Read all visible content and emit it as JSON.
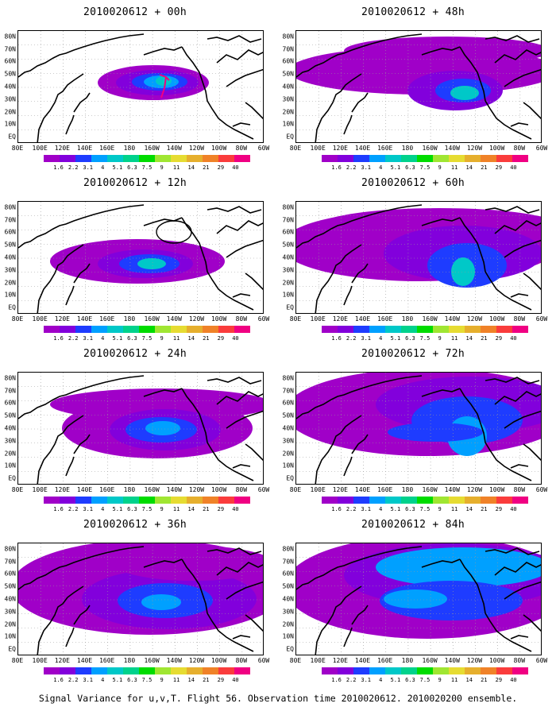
{
  "footer": "Signal Variance for u,v,T. Flight 56. Observation time 2010020612. 2010020200 ensemble.",
  "lat_labels": [
    "80N",
    "70N",
    "60N",
    "50N",
    "40N",
    "30N",
    "20N",
    "10N",
    "EQ"
  ],
  "lon_labels": [
    "80E",
    "100E",
    "120E",
    "140E",
    "160E",
    "180",
    "160W",
    "140W",
    "120W",
    "100W",
    "80W",
    "60W"
  ],
  "colorbar": {
    "labels": [
      "1.6",
      "2.2",
      "3.1",
      "4",
      "5.1",
      "6.3",
      "7.5",
      "9",
      "11",
      "14",
      "21",
      "29",
      "40"
    ],
    "colors": [
      "#a000c8",
      "#8200dc",
      "#1e3cff",
      "#00a0ff",
      "#00c8c8",
      "#00d28c",
      "#00dc00",
      "#a0e632",
      "#e6dc32",
      "#e6af2d",
      "#f08228",
      "#fa3c3c",
      "#f00082"
    ]
  },
  "panels": [
    {
      "title": "2010020612 + 00h"
    },
    {
      "title": "2010020612 + 48h"
    },
    {
      "title": "2010020612 + 12h"
    },
    {
      "title": "2010020612 + 60h"
    },
    {
      "title": "2010020612 + 24h"
    },
    {
      "title": "2010020612 + 72h"
    },
    {
      "title": "2010020612 + 36h"
    },
    {
      "title": "2010020612 + 84h"
    }
  ]
}
